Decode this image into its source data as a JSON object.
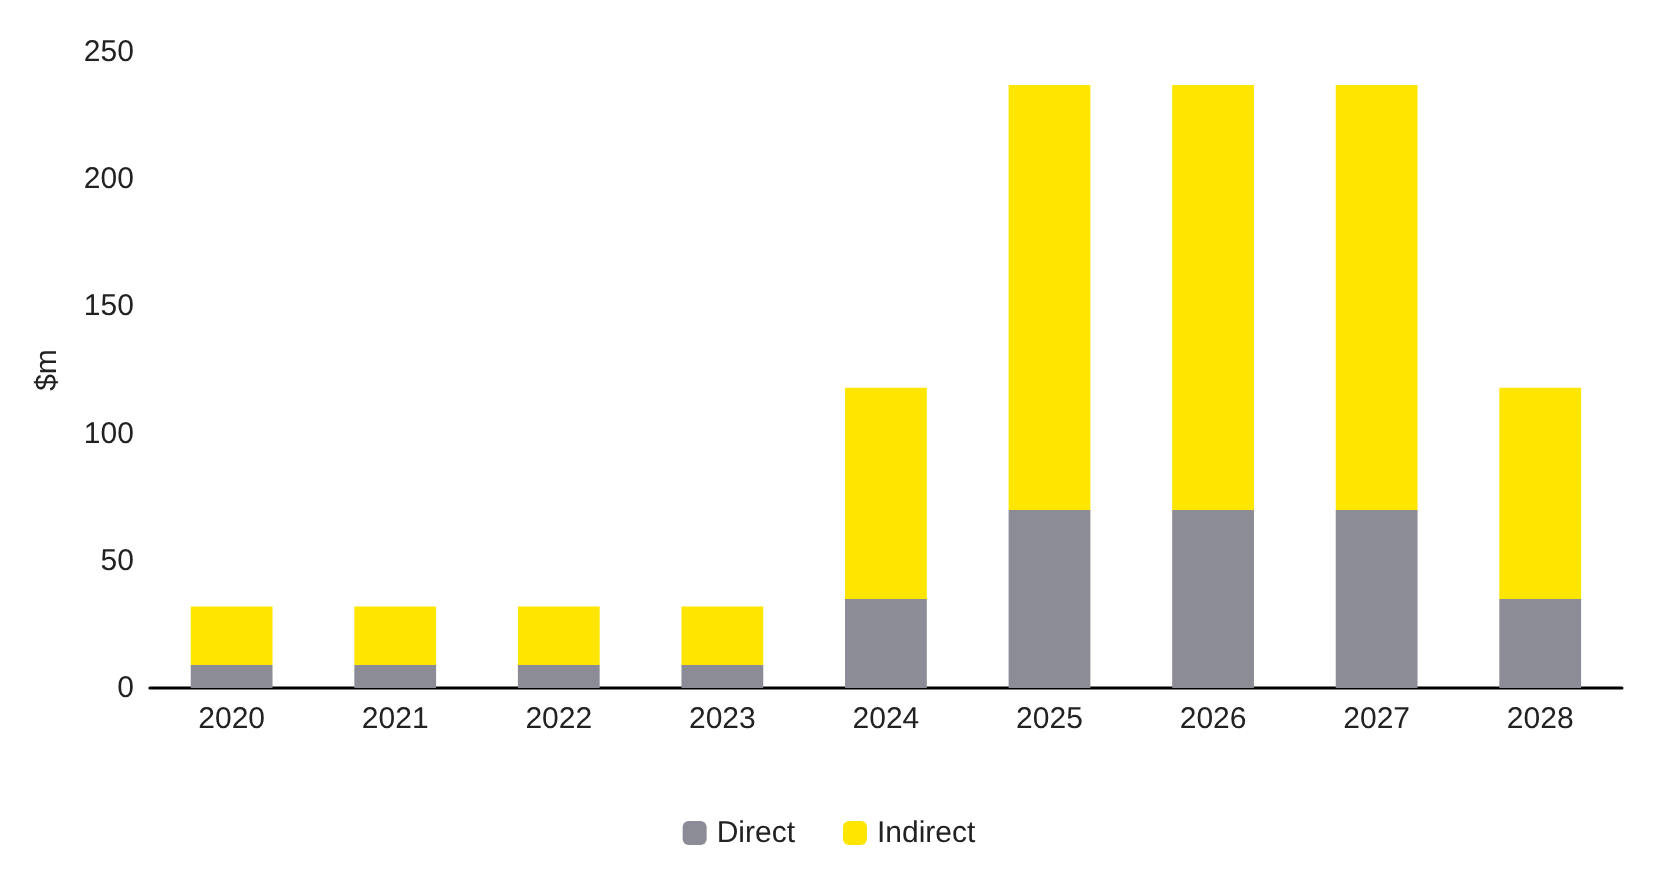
{
  "chart_data": {
    "type": "bar",
    "stacked": true,
    "ylabel": "$m",
    "categories": [
      "2020",
      "2021",
      "2022",
      "2023",
      "2024",
      "2025",
      "2026",
      "2027",
      "2028"
    ],
    "series": [
      {
        "name": "Direct",
        "color": "#8c8c96",
        "values": [
          9,
          9,
          9,
          9,
          35,
          70,
          70,
          70,
          35
        ]
      },
      {
        "name": "Indirect",
        "color": "#ffe600",
        "values": [
          23,
          23,
          23,
          23,
          83,
          167,
          167,
          167,
          83
        ]
      }
    ],
    "ylim": [
      0,
      250
    ],
    "yticks": [
      0,
      50,
      100,
      150,
      200,
      250
    ],
    "grid": false,
    "legend": "bottom"
  }
}
